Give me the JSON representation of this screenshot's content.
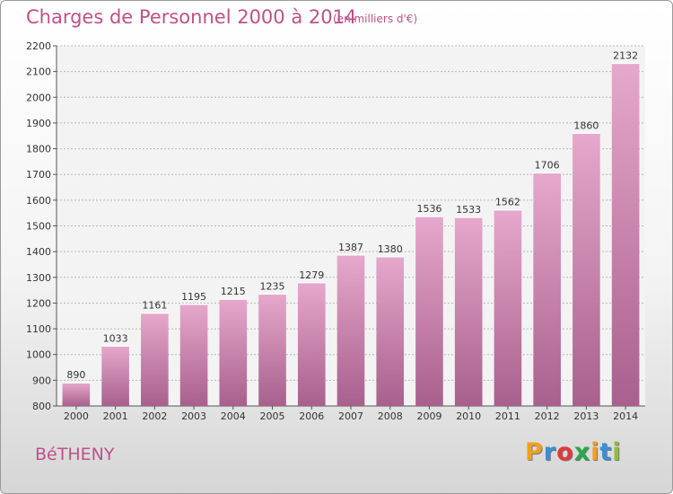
{
  "header": {
    "title": "Charges de Personnel 2000 à 2014",
    "unit": "(en milliers d'€)"
  },
  "footer": {
    "commune": "BéTHENY",
    "logo_letters": [
      "P",
      "r",
      "o",
      "x",
      "i",
      "t",
      "i"
    ],
    "logo_colors": [
      "#f0a020",
      "#3a8fd6",
      "#e03a3a",
      "#2aa84a",
      "#f0a020",
      "#3a8fd6",
      "#8fbf3a"
    ]
  },
  "colors": {
    "bar_top": "#e6a8cc",
    "bar_bottom": "#a8608c",
    "text_accent": "#c0508a",
    "grid": "#b8b8b8"
  },
  "chart_data": {
    "type": "bar",
    "title": "Charges de Personnel 2000 à 2014",
    "ylabel": "(en milliers d'€)",
    "categories": [
      "2000",
      "2001",
      "2002",
      "2003",
      "2004",
      "2005",
      "2006",
      "2007",
      "2008",
      "2009",
      "2010",
      "2011",
      "2012",
      "2013",
      "2014"
    ],
    "values": [
      890,
      1033,
      1161,
      1195,
      1215,
      1235,
      1279,
      1387,
      1380,
      1536,
      1533,
      1562,
      1706,
      1860,
      2132
    ],
    "ylim": [
      800,
      2200
    ],
    "yticks": [
      800,
      900,
      1000,
      1100,
      1200,
      1300,
      1400,
      1500,
      1600,
      1700,
      1800,
      1900,
      2000,
      2100,
      2200
    ],
    "grid": true
  }
}
